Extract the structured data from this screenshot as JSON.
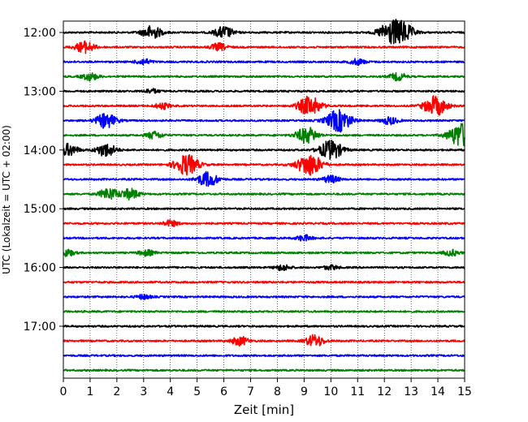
{
  "chart_data": {
    "type": "line",
    "title": "",
    "xlabel": "Zeit  [min]",
    "ylabel": "UTC (Lokalzeit = UTC + 02:00)",
    "xlim": [
      0,
      15
    ],
    "x_ticks": [
      0,
      1,
      2,
      3,
      4,
      5,
      6,
      7,
      8,
      9,
      10,
      11,
      12,
      13,
      14,
      15
    ],
    "y_tick_labels": [
      "12:00",
      "13:00",
      "14:00",
      "15:00",
      "16:00",
      "17:00"
    ],
    "grid": "vertical dotted lines at each minute",
    "trace_interval_min": 15,
    "colors": [
      "#000000",
      "#ff0000",
      "#0000ff",
      "#008000"
    ],
    "traces": [
      {
        "start": "12:00",
        "color": "#000000",
        "events": [
          {
            "t": 3.3,
            "amp": 0.9
          },
          {
            "t": 6.0,
            "amp": 0.8
          },
          {
            "t": 12.2,
            "amp": 1.3
          },
          {
            "t": 12.7,
            "amp": 1.2
          }
        ]
      },
      {
        "start": "12:15",
        "color": "#ff0000",
        "events": [
          {
            "t": 0.8,
            "amp": 0.8
          },
          {
            "t": 5.8,
            "amp": 0.5
          }
        ]
      },
      {
        "start": "12:30",
        "color": "#0000ff",
        "events": [
          {
            "t": 3.0,
            "amp": 0.4
          },
          {
            "t": 11.0,
            "amp": 0.4
          }
        ]
      },
      {
        "start": "12:45",
        "color": "#008000",
        "events": [
          {
            "t": 1.0,
            "amp": 0.5
          },
          {
            "t": 12.5,
            "amp": 0.5
          }
        ]
      },
      {
        "start": "13:00",
        "color": "#000000",
        "events": [
          {
            "t": 3.3,
            "amp": 0.3
          }
        ]
      },
      {
        "start": "13:15",
        "color": "#ff0000",
        "events": [
          {
            "t": 3.7,
            "amp": 0.4
          },
          {
            "t": 9.2,
            "amp": 1.3
          },
          {
            "t": 13.9,
            "amp": 1.3
          }
        ]
      },
      {
        "start": "13:30",
        "color": "#0000ff",
        "events": [
          {
            "t": 1.6,
            "amp": 1.0
          },
          {
            "t": 10.3,
            "amp": 1.5
          },
          {
            "t": 12.2,
            "amp": 0.5
          }
        ]
      },
      {
        "start": "13:45",
        "color": "#008000",
        "events": [
          {
            "t": 3.4,
            "amp": 0.5
          },
          {
            "t": 9.1,
            "amp": 1.1
          },
          {
            "t": 14.9,
            "amp": 1.7
          }
        ]
      },
      {
        "start": "14:00",
        "color": "#000000",
        "events": [
          {
            "t": 0.2,
            "amp": 0.8
          },
          {
            "t": 1.6,
            "amp": 0.9
          },
          {
            "t": 10.0,
            "amp": 1.3
          }
        ]
      },
      {
        "start": "14:15",
        "color": "#ff0000",
        "events": [
          {
            "t": 4.6,
            "amp": 1.4
          },
          {
            "t": 9.2,
            "amp": 1.5
          }
        ]
      },
      {
        "start": "14:30",
        "color": "#0000ff",
        "events": [
          {
            "t": 5.4,
            "amp": 1.0
          },
          {
            "t": 10.0,
            "amp": 0.5
          }
        ]
      },
      {
        "start": "14:45",
        "color": "#008000",
        "events": [
          {
            "t": 1.7,
            "amp": 0.8
          },
          {
            "t": 2.5,
            "amp": 0.7
          }
        ]
      },
      {
        "start": "15:00",
        "color": "#000000",
        "events": []
      },
      {
        "start": "15:15",
        "color": "#ff0000",
        "events": [
          {
            "t": 4.0,
            "amp": 0.4
          }
        ]
      },
      {
        "start": "15:30",
        "color": "#0000ff",
        "events": [
          {
            "t": 9.0,
            "amp": 0.4
          }
        ]
      },
      {
        "start": "15:45",
        "color": "#008000",
        "events": [
          {
            "t": 0.1,
            "amp": 0.5
          },
          {
            "t": 3.1,
            "amp": 0.4
          },
          {
            "t": 14.5,
            "amp": 0.4
          }
        ]
      },
      {
        "start": "16:00",
        "color": "#000000",
        "events": [
          {
            "t": 8.2,
            "amp": 0.4
          },
          {
            "t": 10.0,
            "amp": 0.3
          }
        ]
      },
      {
        "start": "16:15",
        "color": "#ff0000",
        "events": []
      },
      {
        "start": "16:30",
        "color": "#0000ff",
        "events": [
          {
            "t": 3.0,
            "amp": 0.3
          }
        ]
      },
      {
        "start": "16:45",
        "color": "#008000",
        "events": []
      },
      {
        "start": "17:00",
        "color": "#000000",
        "events": []
      },
      {
        "start": "17:15",
        "color": "#ff0000",
        "events": [
          {
            "t": 6.6,
            "amp": 0.6
          },
          {
            "t": 9.4,
            "amp": 0.8
          }
        ]
      },
      {
        "start": "17:30",
        "color": "#0000ff",
        "events": []
      },
      {
        "start": "17:45",
        "color": "#008000",
        "events": []
      }
    ]
  }
}
